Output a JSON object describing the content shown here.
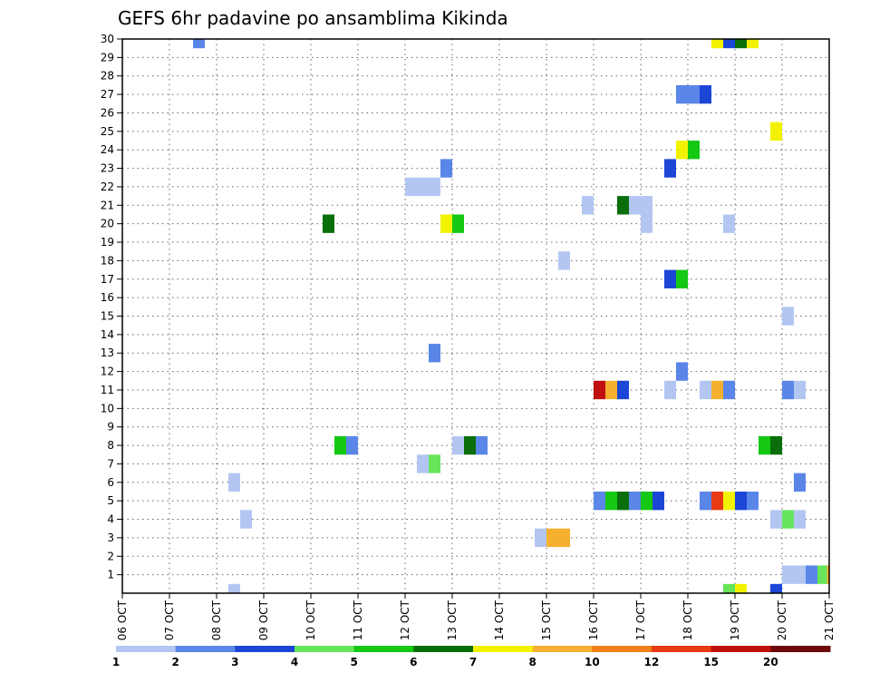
{
  "chart_data": {
    "type": "heatmap",
    "title": "GEFS 6hr padavine po ansamblima Kikinda",
    "x_tick_labels": [
      "06 OCT",
      "07 OCT",
      "08 OCT",
      "09 OCT",
      "10 OCT",
      "11 OCT",
      "12 OCT",
      "13 OCT",
      "14 OCT",
      "15 OCT",
      "16 OCT",
      "17 OCT",
      "18 OCT",
      "19 OCT",
      "20 OCT",
      "21 OCT"
    ],
    "x_range_days": [
      0,
      15
    ],
    "y_tick_labels": [
      "1",
      "2",
      "3",
      "4",
      "5",
      "6",
      "7",
      "8",
      "9",
      "10",
      "11",
      "12",
      "13",
      "14",
      "15",
      "16",
      "17",
      "18",
      "19",
      "20",
      "21",
      "22",
      "23",
      "24",
      "25",
      "26",
      "27",
      "28",
      "29",
      "30"
    ],
    "y_range": [
      0,
      30
    ],
    "grid": true,
    "time_step_hours": 6,
    "legend_ticks": [
      "1",
      "2",
      "3",
      "4",
      "5",
      "6",
      "7",
      "8",
      "10",
      "12",
      "15",
      "20"
    ],
    "legend_colors": [
      "#b3c6f2",
      "#5a86e8",
      "#1c46d6",
      "#66e55a",
      "#14c814",
      "#0a6e0a",
      "#f2f200",
      "#f5b030",
      "#f08018",
      "#e83a14",
      "#c01010",
      "#6e0a0a"
    ],
    "levels": [
      1,
      2,
      3,
      4,
      5,
      6,
      7,
      8,
      10,
      12,
      15,
      20
    ],
    "cells": [
      {
        "member": 30,
        "day": 1.5,
        "value": 2
      },
      {
        "member": 30,
        "day": 12.5,
        "value": 7
      },
      {
        "member": 30,
        "day": 12.75,
        "value": 3
      },
      {
        "member": 30,
        "day": 13.0,
        "value": 6
      },
      {
        "member": 30,
        "day": 13.25,
        "value": 7
      },
      {
        "member": 27,
        "day": 11.75,
        "value": 2
      },
      {
        "member": 27,
        "day": 12.0,
        "value": 2
      },
      {
        "member": 27,
        "day": 12.25,
        "value": 3
      },
      {
        "member": 25,
        "day": 13.75,
        "value": 7
      },
      {
        "member": 24,
        "day": 11.75,
        "value": 7
      },
      {
        "member": 24,
        "day": 12.0,
        "value": 5
      },
      {
        "member": 23,
        "day": 11.5,
        "value": 3
      },
      {
        "member": 23,
        "day": 6.75,
        "value": 2
      },
      {
        "member": 22,
        "day": 6.0,
        "value": 1
      },
      {
        "member": 22,
        "day": 6.25,
        "value": 1
      },
      {
        "member": 22,
        "day": 6.5,
        "value": 1
      },
      {
        "member": 21,
        "day": 9.75,
        "value": 1
      },
      {
        "member": 21,
        "day": 10.5,
        "value": 6
      },
      {
        "member": 21,
        "day": 10.75,
        "value": 1
      },
      {
        "member": 21,
        "day": 11.0,
        "value": 1
      },
      {
        "member": 20,
        "day": 4.25,
        "value": 6
      },
      {
        "member": 20,
        "day": 6.75,
        "value": 7
      },
      {
        "member": 20,
        "day": 7.0,
        "value": 5
      },
      {
        "member": 20,
        "day": 11.0,
        "value": 1
      },
      {
        "member": 20,
        "day": 12.75,
        "value": 1
      },
      {
        "member": 18,
        "day": 9.25,
        "value": 1
      },
      {
        "member": 17,
        "day": 11.5,
        "value": 3
      },
      {
        "member": 17,
        "day": 11.75,
        "value": 5
      },
      {
        "member": 15,
        "day": 14.0,
        "value": 1
      },
      {
        "member": 13,
        "day": 6.5,
        "value": 2
      },
      {
        "member": 12,
        "day": 11.75,
        "value": 2
      },
      {
        "member": 11,
        "day": 10.0,
        "value": 15
      },
      {
        "member": 11,
        "day": 10.25,
        "value": 8
      },
      {
        "member": 11,
        "day": 10.5,
        "value": 3
      },
      {
        "member": 11,
        "day": 11.5,
        "value": 1
      },
      {
        "member": 11,
        "day": 12.25,
        "value": 1
      },
      {
        "member": 11,
        "day": 12.5,
        "value": 8
      },
      {
        "member": 11,
        "day": 12.75,
        "value": 2
      },
      {
        "member": 11,
        "day": 14.0,
        "value": 2
      },
      {
        "member": 11,
        "day": 14.25,
        "value": 1
      },
      {
        "member": 8,
        "day": 4.5,
        "value": 5
      },
      {
        "member": 8,
        "day": 4.75,
        "value": 2
      },
      {
        "member": 8,
        "day": 7.0,
        "value": 1
      },
      {
        "member": 8,
        "day": 7.25,
        "value": 6
      },
      {
        "member": 8,
        "day": 7.5,
        "value": 2
      },
      {
        "member": 8,
        "day": 13.5,
        "value": 5
      },
      {
        "member": 8,
        "day": 13.75,
        "value": 6
      },
      {
        "member": 7,
        "day": 6.25,
        "value": 1
      },
      {
        "member": 7,
        "day": 6.5,
        "value": 4
      },
      {
        "member": 6,
        "day": 2.25,
        "value": 1
      },
      {
        "member": 6,
        "day": 14.25,
        "value": 2
      },
      {
        "member": 5,
        "day": 10.0,
        "value": 2
      },
      {
        "member": 5,
        "day": 10.25,
        "value": 5
      },
      {
        "member": 5,
        "day": 10.5,
        "value": 6
      },
      {
        "member": 5,
        "day": 10.75,
        "value": 2
      },
      {
        "member": 5,
        "day": 11.0,
        "value": 5
      },
      {
        "member": 5,
        "day": 11.25,
        "value": 3
      },
      {
        "member": 5,
        "day": 12.25,
        "value": 2
      },
      {
        "member": 5,
        "day": 12.5,
        "value": 12
      },
      {
        "member": 5,
        "day": 12.75,
        "value": 7
      },
      {
        "member": 5,
        "day": 13.0,
        "value": 3
      },
      {
        "member": 5,
        "day": 13.25,
        "value": 2
      },
      {
        "member": 4,
        "day": 2.5,
        "value": 1
      },
      {
        "member": 4,
        "day": 13.75,
        "value": 1
      },
      {
        "member": 4,
        "day": 14.0,
        "value": 4
      },
      {
        "member": 4,
        "day": 14.25,
        "value": 1
      },
      {
        "member": 3,
        "day": 8.75,
        "value": 1
      },
      {
        "member": 3,
        "day": 9.0,
        "value": 8
      },
      {
        "member": 3,
        "day": 9.25,
        "value": 8
      },
      {
        "member": 1,
        "day": 14.0,
        "value": 1
      },
      {
        "member": 1,
        "day": 14.25,
        "value": 1
      },
      {
        "member": 1,
        "day": 14.5,
        "value": 2
      },
      {
        "member": 1,
        "day": 14.75,
        "value": 4
      },
      {
        "member": 1,
        "day": 14.95,
        "value": 8
      },
      {
        "member": 0,
        "day": 2.25,
        "value": 1
      },
      {
        "member": 0,
        "day": 12.75,
        "value": 4
      },
      {
        "member": 0,
        "day": 13.0,
        "value": 7
      },
      {
        "member": 0,
        "day": 13.75,
        "value": 3
      }
    ]
  }
}
